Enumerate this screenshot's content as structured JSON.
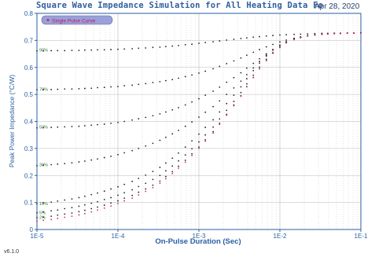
{
  "header": {
    "title": "Square Wave Impedance Simulation for All Heating Data Fo",
    "date": "Apr 28, 2020"
  },
  "footer": {
    "version": "v6.1.0"
  },
  "chart_data": {
    "type": "scatter",
    "x_scale": "log",
    "xlim": [
      1e-05,
      0.1
    ],
    "ylim": [
      0,
      0.8
    ],
    "xlabel": "On-Pulse Duration (Sec)",
    "ylabel": "Peak Power Impedance (°C/W)",
    "x_ticks": [
      "1E-5",
      "1E-4",
      "1E-3",
      "1E-2",
      "1E-1"
    ],
    "y_ticks": [
      "0",
      "0.1",
      "0.2",
      "0.3",
      "0.4",
      "0.5",
      "0.6",
      "0.7",
      "0.8"
    ],
    "grid": true,
    "legend": {
      "placement": "top-left",
      "entries": [
        {
          "name": "Single Pulse Curve",
          "color": "#e0205a"
        }
      ]
    },
    "colors": {
      "axis": "#2a5fa0",
      "grid": "#b8b8b8",
      "series_default": "#222222",
      "single_pulse": "#e0205a",
      "legend_bg": "#9aa0d8"
    },
    "x": [
      1e-05,
      1.2e-05,
      1.5e-05,
      1.8e-05,
      2.2e-05,
      2.7e-05,
      3.3e-05,
      3.9e-05,
      4.7e-05,
      5.6e-05,
      6.8e-05,
      8.2e-05,
      0.0001,
      0.00012,
      0.00015,
      0.00018,
      0.00022,
      0.00027,
      0.00033,
      0.00039,
      0.00047,
      0.00056,
      0.00068,
      0.00082,
      0.001,
      0.0012,
      0.0015,
      0.0018,
      0.0022,
      0.0027,
      0.0033,
      0.0039,
      0.0047,
      0.0056,
      0.0068,
      0.0082,
      0.01,
      0.012,
      0.015,
      0.018,
      0.022,
      0.027,
      0.033,
      0.039,
      0.047,
      0.056,
      0.068,
      0.082,
      0.1
    ],
    "series": [
      {
        "label": "90%",
        "duty_cycle": 0.9,
        "values": [
          0.661,
          0.661,
          0.662,
          0.662,
          0.662,
          0.663,
          0.663,
          0.664,
          0.664,
          0.665,
          0.665,
          0.666,
          0.667,
          0.668,
          0.669,
          0.671,
          0.672,
          0.674,
          0.675,
          0.677,
          0.679,
          0.681,
          0.684,
          0.686,
          0.689,
          0.692,
          0.695,
          0.698,
          0.701,
          0.704,
          0.707,
          0.709,
          0.712,
          0.714,
          0.716,
          0.718,
          0.72,
          0.721,
          0.722,
          0.723,
          0.724,
          0.725,
          0.726,
          0.726,
          0.727,
          0.727,
          0.727,
          0.727,
          0.728
        ]
      },
      {
        "label": "70%",
        "duty_cycle": 0.7,
        "values": [
          0.517,
          0.518,
          0.518,
          0.519,
          0.52,
          0.52,
          0.521,
          0.522,
          0.523,
          0.525,
          0.526,
          0.528,
          0.529,
          0.532,
          0.534,
          0.537,
          0.54,
          0.544,
          0.547,
          0.551,
          0.555,
          0.56,
          0.566,
          0.572,
          0.579,
          0.586,
          0.595,
          0.604,
          0.614,
          0.624,
          0.635,
          0.645,
          0.656,
          0.666,
          0.676,
          0.685,
          0.694,
          0.701,
          0.708,
          0.713,
          0.717,
          0.72,
          0.723,
          0.724,
          0.725,
          0.726,
          0.727,
          0.727,
          0.728
        ]
      },
      {
        "label": "50%",
        "duty_cycle": 0.5,
        "values": [
          0.376,
          0.377,
          0.378,
          0.379,
          0.38,
          0.381,
          0.382,
          0.384,
          0.386,
          0.388,
          0.39,
          0.393,
          0.396,
          0.4,
          0.405,
          0.41,
          0.415,
          0.421,
          0.428,
          0.435,
          0.443,
          0.451,
          0.461,
          0.472,
          0.484,
          0.497,
          0.512,
          0.527,
          0.545,
          0.562,
          0.58,
          0.597,
          0.615,
          0.632,
          0.65,
          0.666,
          0.681,
          0.693,
          0.704,
          0.711,
          0.717,
          0.72,
          0.723,
          0.724,
          0.725,
          0.726,
          0.727,
          0.727,
          0.728
        ]
      },
      {
        "label": "30%",
        "duty_cycle": 0.3,
        "values": [
          0.236,
          0.238,
          0.24,
          0.242,
          0.244,
          0.247,
          0.25,
          0.253,
          0.257,
          0.261,
          0.266,
          0.271,
          0.277,
          0.284,
          0.292,
          0.3,
          0.309,
          0.319,
          0.33,
          0.341,
          0.354,
          0.367,
          0.382,
          0.398,
          0.416,
          0.434,
          0.455,
          0.476,
          0.5,
          0.524,
          0.549,
          0.573,
          0.598,
          0.622,
          0.645,
          0.665,
          0.682,
          0.695,
          0.705,
          0.712,
          0.717,
          0.721,
          0.723,
          0.725,
          0.726,
          0.726,
          0.727,
          0.727,
          0.728
        ]
      },
      {
        "label": "10%",
        "duty_cycle": 0.1,
        "values": [
          0.095,
          0.098,
          0.101,
          0.105,
          0.109,
          0.113,
          0.118,
          0.123,
          0.129,
          0.135,
          0.142,
          0.15,
          0.158,
          0.167,
          0.178,
          0.189,
          0.201,
          0.215,
          0.23,
          0.246,
          0.264,
          0.283,
          0.305,
          0.328,
          0.353,
          0.378,
          0.406,
          0.435,
          0.466,
          0.497,
          0.528,
          0.558,
          0.588,
          0.616,
          0.642,
          0.664,
          0.682,
          0.695,
          0.705,
          0.712,
          0.717,
          0.72,
          0.723,
          0.724,
          0.725,
          0.726,
          0.727,
          0.727,
          0.728
        ]
      },
      {
        "label": "5%",
        "duty_cycle": 0.05,
        "values": [
          0.062,
          0.065,
          0.069,
          0.072,
          0.077,
          0.081,
          0.086,
          0.091,
          0.097,
          0.103,
          0.111,
          0.118,
          0.127,
          0.136,
          0.147,
          0.159,
          0.171,
          0.185,
          0.2,
          0.217,
          0.235,
          0.254,
          0.276,
          0.299,
          0.324,
          0.35,
          0.379,
          0.409,
          0.441,
          0.474,
          0.507,
          0.539,
          0.571,
          0.601,
          0.63,
          0.655,
          0.676,
          0.692,
          0.704,
          0.711,
          0.716,
          0.72,
          0.723,
          0.724,
          0.725,
          0.726,
          0.727,
          0.727,
          0.728
        ]
      },
      {
        "label": "2%",
        "duty_cycle": 0.02,
        "values": [
          0.044,
          0.046,
          0.049,
          0.053,
          0.057,
          0.061,
          0.066,
          0.071,
          0.077,
          0.083,
          0.09,
          0.098,
          0.106,
          0.116,
          0.126,
          0.138,
          0.15,
          0.164,
          0.179,
          0.196,
          0.214,
          0.234,
          0.256,
          0.28,
          0.305,
          0.332,
          0.362,
          0.393,
          0.426,
          0.461,
          0.495,
          0.529,
          0.563,
          0.595,
          0.625,
          0.652,
          0.674,
          0.691,
          0.703,
          0.71,
          0.716,
          0.72,
          0.722,
          0.724,
          0.725,
          0.726,
          0.727,
          0.727,
          0.728
        ]
      },
      {
        "label": "Single Pulse Curve",
        "duty_cycle": 0,
        "values": [
          0.031,
          0.034,
          0.037,
          0.041,
          0.045,
          0.049,
          0.054,
          0.059,
          0.065,
          0.072,
          0.079,
          0.087,
          0.096,
          0.106,
          0.116,
          0.128,
          0.141,
          0.155,
          0.171,
          0.188,
          0.207,
          0.227,
          0.249,
          0.274,
          0.3,
          0.327,
          0.357,
          0.389,
          0.423,
          0.458,
          0.493,
          0.528,
          0.562,
          0.595,
          0.625,
          0.652,
          0.674,
          0.691,
          0.703,
          0.71,
          0.716,
          0.72,
          0.722,
          0.724,
          0.725,
          0.726,
          0.727,
          0.727,
          0.728
        ]
      }
    ],
    "series_labels": [
      {
        "text": "90%",
        "y": 0.665
      },
      {
        "text": "70%",
        "y": 0.52
      },
      {
        "text": "50%",
        "y": 0.38
      },
      {
        "text": "30%",
        "y": 0.24
      },
      {
        "text": "10%",
        "y": 0.096
      },
      {
        "text": "5%",
        "y": 0.063
      },
      {
        "text": "2%",
        "y": 0.045
      }
    ]
  }
}
